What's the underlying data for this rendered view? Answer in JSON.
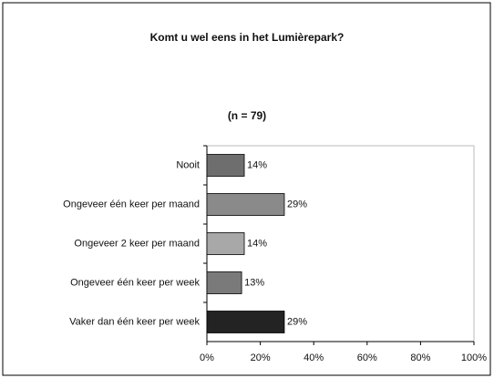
{
  "chart_data": {
    "type": "hbar",
    "title": "Komt u wel eens in het Lumièrepark?",
    "subtitle": "(n = 79)",
    "categories": [
      "Nooit",
      "Ongeveer één keer per maand",
      "Ongeveer 2 keer per maand",
      "Ongeveer één keer per week",
      "Vaker dan één keer per week"
    ],
    "values": [
      14,
      29,
      14,
      13,
      29
    ],
    "value_labels": [
      "14%",
      "29%",
      "14%",
      "13%",
      "29%"
    ],
    "colors": [
      "#6e6e6e",
      "#8a8a8a",
      "#a8a8a8",
      "#7a7a7a",
      "#232323"
    ],
    "xlim": [
      0,
      100
    ],
    "xticks": [
      {
        "value": 0,
        "label": "0%"
      },
      {
        "value": 20,
        "label": "20%"
      },
      {
        "value": 40,
        "label": "40%"
      },
      {
        "value": 60,
        "label": "60%"
      },
      {
        "value": 80,
        "label": "80%"
      },
      {
        "value": 100,
        "label": "100%"
      }
    ],
    "grid": false
  }
}
